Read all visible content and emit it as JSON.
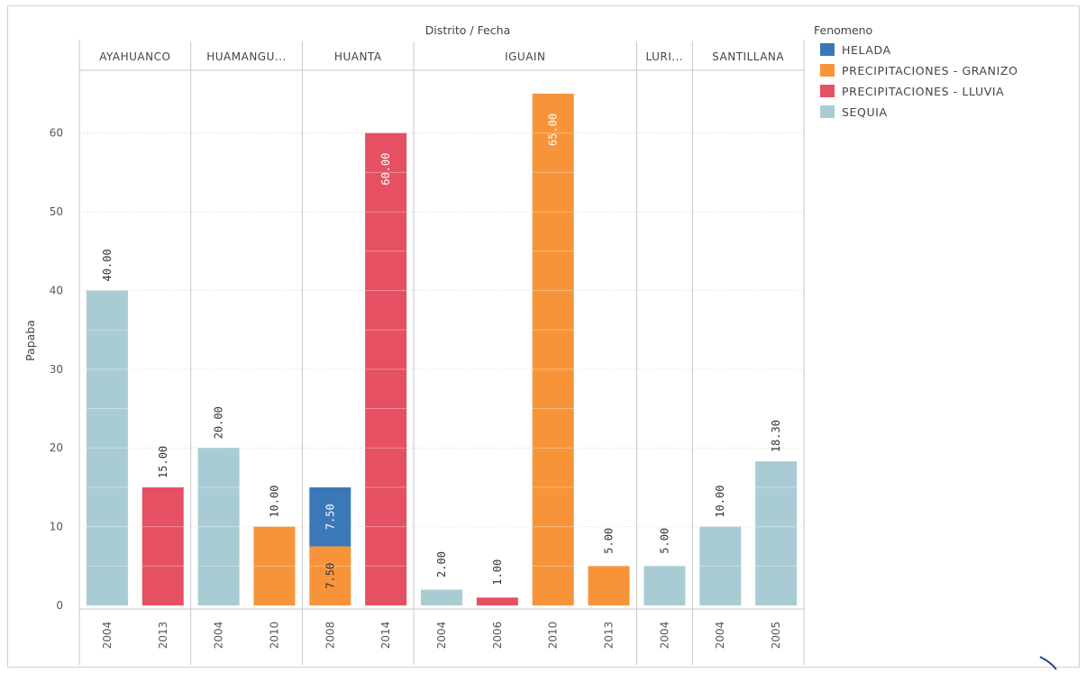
{
  "chart_data": {
    "type": "bar",
    "stacked": true,
    "title": "Distrito / Fecha",
    "ylabel": "Papaba",
    "xlabel": "",
    "ylim": [
      0,
      68
    ],
    "yticks": [
      0,
      10,
      20,
      30,
      40,
      50,
      60
    ],
    "grid": true,
    "legend": {
      "title": "Fenomeno",
      "position": "right",
      "entries": [
        {
          "key": "helada",
          "label": "HELADA",
          "color": "#3b78b8"
        },
        {
          "key": "granizo",
          "label": "PRECIPITACIONES - GRANIZO",
          "color": "#f7943a"
        },
        {
          "key": "lluvia",
          "label": "PRECIPITACIONES - LLUVIA",
          "color": "#e55063"
        },
        {
          "key": "sequia",
          "label": "SEQUIA",
          "color": "#a9ccd4"
        }
      ]
    },
    "groups": [
      {
        "label": "AYAHUANCO",
        "count": 2
      },
      {
        "label": "HUAMANGU...",
        "count": 2
      },
      {
        "label": "HUANTA",
        "count": 2
      },
      {
        "label": "IGUAIN",
        "count": 4
      },
      {
        "label": "LURI...",
        "count": 1
      },
      {
        "label": "SANTILLANA",
        "count": 2
      }
    ],
    "categories": [
      "2004",
      "2013",
      "2004",
      "2010",
      "2008",
      "2014",
      "2004",
      "2006",
      "2010",
      "2013",
      "2004",
      "2004",
      "2005"
    ],
    "bars": [
      {
        "x": "2004",
        "segments": [
          {
            "series": "sequia",
            "value": 40.0,
            "label": "40.00"
          }
        ]
      },
      {
        "x": "2013",
        "segments": [
          {
            "series": "lluvia",
            "value": 15.0,
            "label": "15.00"
          }
        ]
      },
      {
        "x": "2004",
        "segments": [
          {
            "series": "sequia",
            "value": 20.0,
            "label": "20.00"
          }
        ]
      },
      {
        "x": "2010",
        "segments": [
          {
            "series": "granizo",
            "value": 10.0,
            "label": "10.00"
          }
        ]
      },
      {
        "x": "2008",
        "segments": [
          {
            "series": "granizo",
            "value": 7.5,
            "label": "7.50"
          },
          {
            "series": "helada",
            "value": 7.5,
            "label": "7.50"
          }
        ]
      },
      {
        "x": "2014",
        "segments": [
          {
            "series": "lluvia",
            "value": 60.0,
            "label": "60.00"
          }
        ]
      },
      {
        "x": "2004",
        "segments": [
          {
            "series": "sequia",
            "value": 2.0,
            "label": "2.00"
          }
        ]
      },
      {
        "x": "2006",
        "segments": [
          {
            "series": "lluvia",
            "value": 1.0,
            "label": "1.00"
          }
        ]
      },
      {
        "x": "2010",
        "segments": [
          {
            "series": "granizo",
            "value": 65.0,
            "label": "65.00"
          }
        ]
      },
      {
        "x": "2013",
        "segments": [
          {
            "series": "granizo",
            "value": 5.0,
            "label": "5.00"
          }
        ]
      },
      {
        "x": "2004",
        "segments": [
          {
            "series": "sequia",
            "value": 5.0,
            "label": "5.00"
          }
        ]
      },
      {
        "x": "2004",
        "segments": [
          {
            "series": "sequia",
            "value": 10.0,
            "label": "10.00"
          }
        ]
      },
      {
        "x": "2005",
        "segments": [
          {
            "series": "sequia",
            "value": 18.3,
            "label": "18.30"
          }
        ]
      }
    ]
  }
}
